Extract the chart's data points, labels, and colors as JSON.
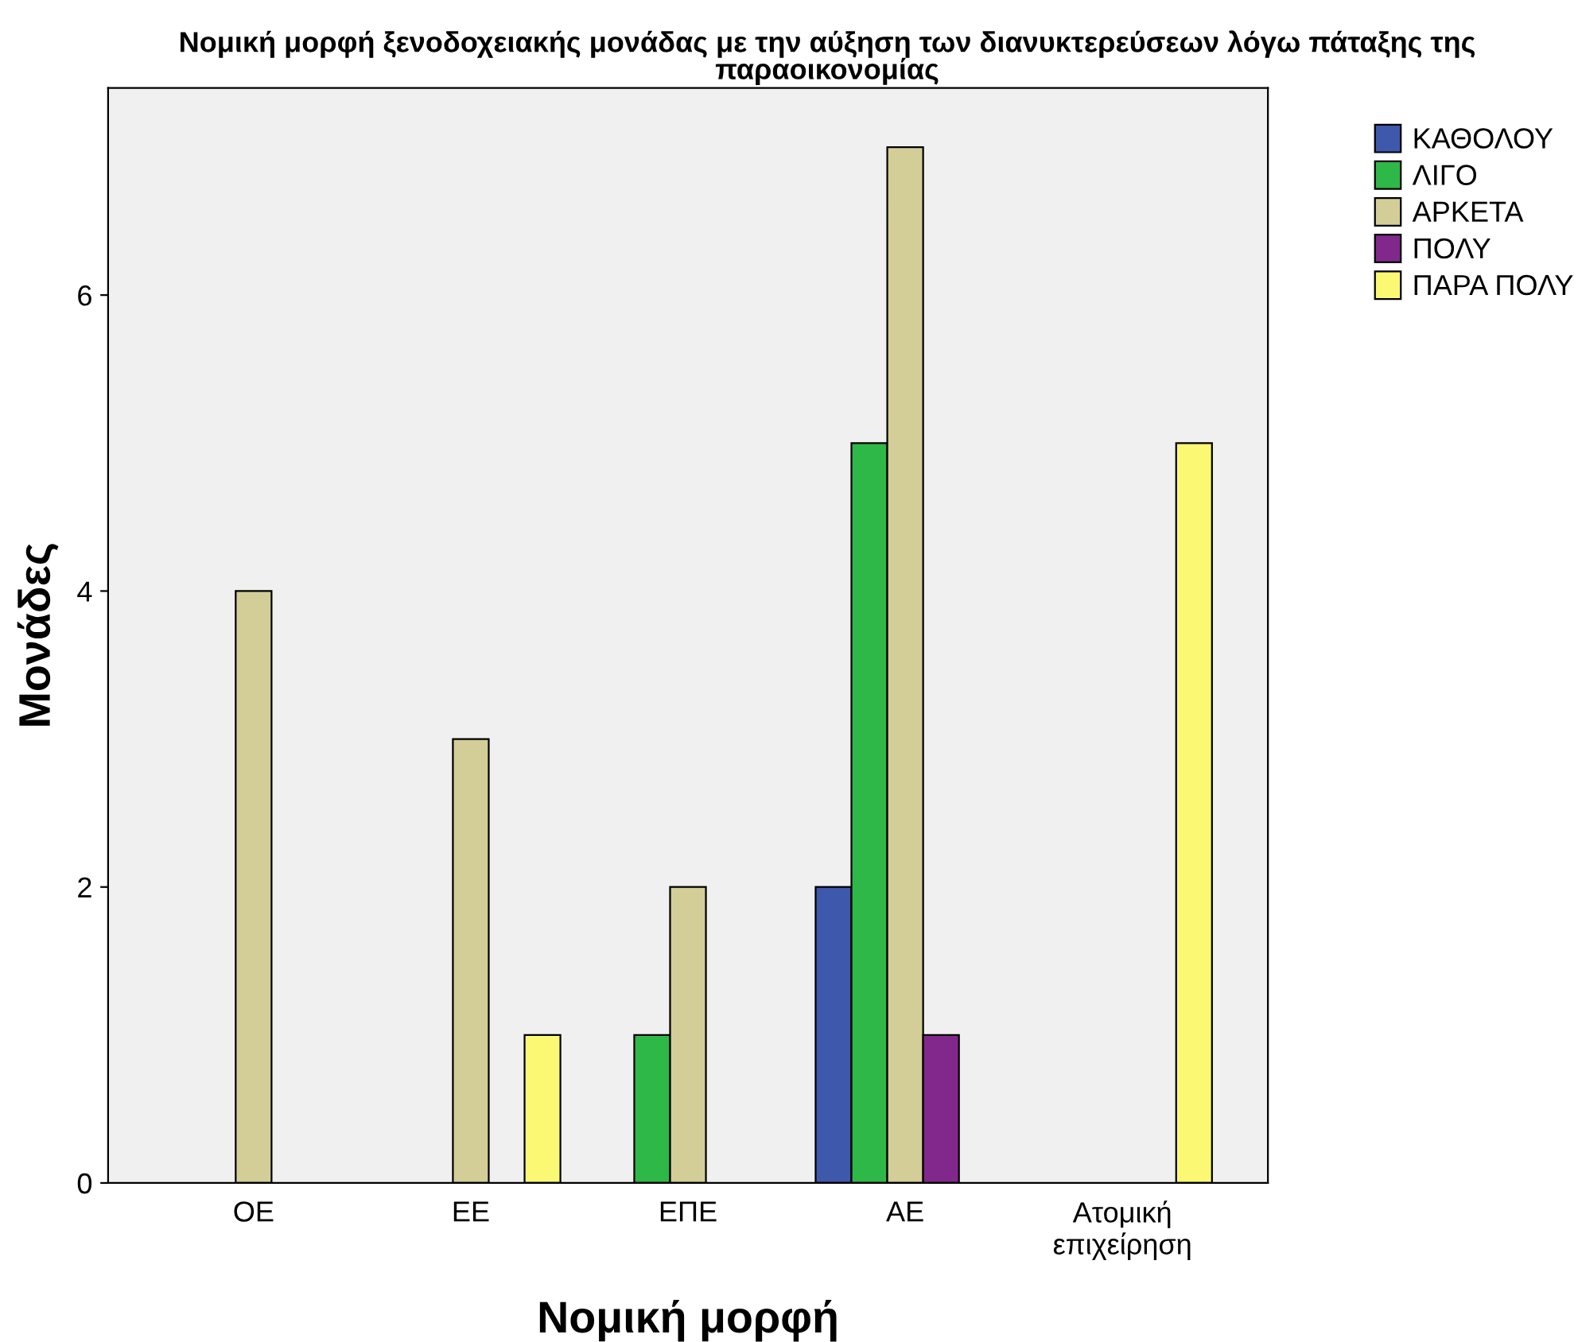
{
  "chart_data": {
    "type": "bar",
    "title": "Νομική μορφή ξενοδοχειακής μονάδας με την αύξηση των διανυκτερεύσεων λόγω πάταξης της\nπαραοικονομίας",
    "xlabel": "Νομική μορφή",
    "ylabel": "Μονάδες",
    "categories": [
      "ΟΕ",
      "ΕΕ",
      "ΕΠΕ",
      "ΑΕ",
      "Ατομική\nεπιχείρηση"
    ],
    "series": [
      {
        "name": "ΚΑΘΟΛΟΥ",
        "color": "#3e58ac",
        "values": [
          0,
          0,
          0,
          2,
          0
        ]
      },
      {
        "name": "ΛΙΓΟ",
        "color": "#2eb848",
        "values": [
          0,
          0,
          1,
          5,
          0
        ]
      },
      {
        "name": "ΑΡΚΕΤΑ",
        "color": "#d3ce97",
        "values": [
          4,
          3,
          2,
          7,
          0
        ]
      },
      {
        "name": "ΠΟΛΥ",
        "color": "#82288c",
        "values": [
          0,
          0,
          0,
          1,
          0
        ]
      },
      {
        "name": "ΠΑΡΑ ΠΟΛΥ",
        "color": "#fbf873",
        "values": [
          0,
          1,
          0,
          0,
          5
        ]
      }
    ],
    "ylim": [
      0,
      7.4
    ],
    "yticks": [
      0,
      2,
      4,
      6
    ],
    "grid": false,
    "legend": "top right"
  }
}
